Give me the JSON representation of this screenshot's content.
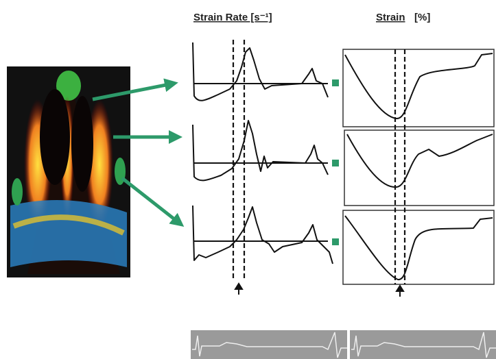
{
  "header": {
    "strain_rate_title": "Strain Rate [s⁻¹]",
    "strain_title": "Strain",
    "strain_unit": "[%]"
  }
}
